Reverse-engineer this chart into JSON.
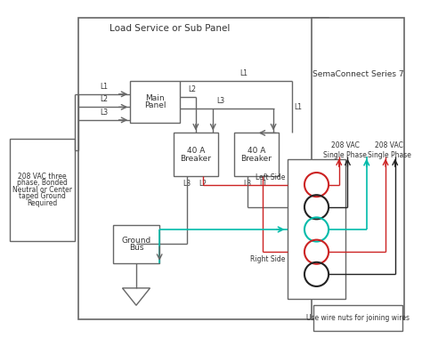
{
  "bg_color": "#ffffff",
  "gray": "#666666",
  "dark": "#333333",
  "red": "#cc2222",
  "green": "#00bbaa",
  "black_wire": "#222222",
  "title": "Load Service or Sub Panel",
  "sema_title": "SemaConnect Series 7",
  "source_label": [
    "208 VAC three",
    "phase, Bonded",
    "Neutral or Center",
    "taped Ground",
    "Required"
  ],
  "main_panel_label": [
    "Main",
    "Panel"
  ],
  "breaker_label": [
    "40 A",
    "Breaker"
  ],
  "ground_bus_label": [
    "Ground",
    "Bus"
  ],
  "wire_nuts_label": "Use wire nuts for joining wires",
  "left_side_label": "Left Side",
  "right_side_label": "Right Side",
  "vac_label1": "208 VAC\nSingle Phase",
  "vac_label2": "208 VAC\nSingle Phase"
}
